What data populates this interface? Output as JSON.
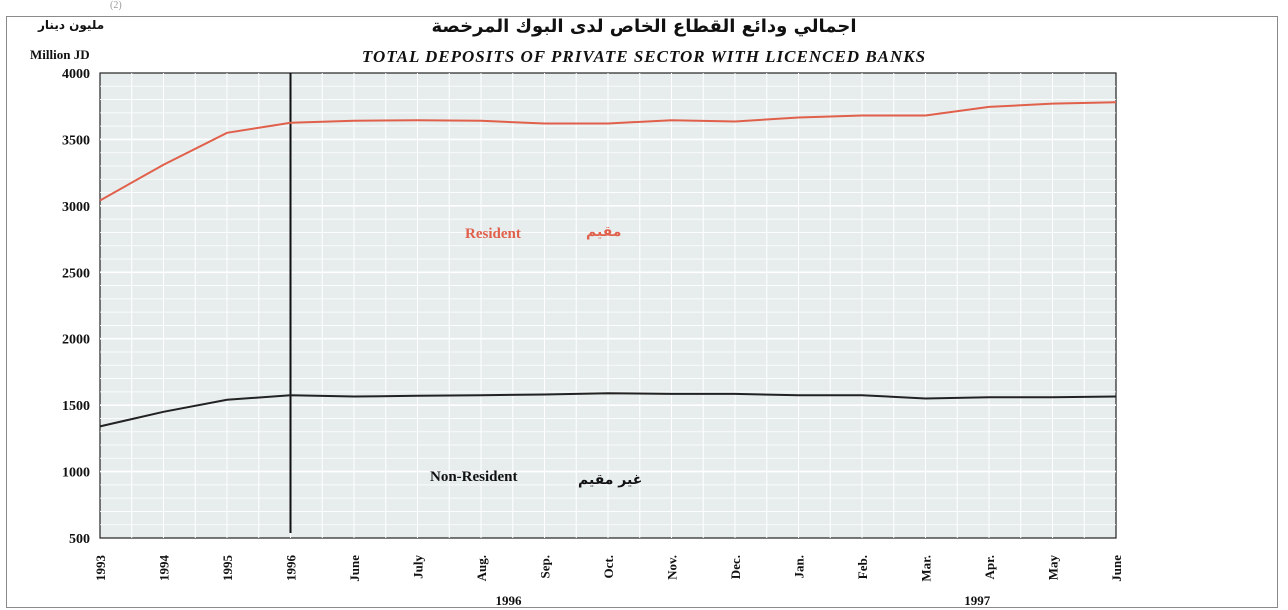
{
  "top_note": "(2)",
  "colors": {
    "resident": "#e0604b",
    "non_resident": "#222222",
    "plot_bg": "#e7eded"
  },
  "chart_data": {
    "type": "line",
    "title": "TOTAL DEPOSITS OF PRIVATE SECTOR WITH LICENCED BANKS",
    "title_ar": "اجمالي ودائع القطاع الخاص لدى البوك المرخصة",
    "ylabel": "Million JD",
    "ylabel_ar": "مليون دينار",
    "ylim": [
      500,
      4000
    ],
    "yticks": [
      500,
      1000,
      1500,
      2000,
      2500,
      3000,
      3500,
      4000
    ],
    "categories": [
      "1993",
      "1994",
      "1995",
      "1996",
      "June",
      "July",
      "Aug.",
      "Sep.",
      "Oct.",
      "Nov.",
      "Dec.",
      "Jan.",
      "Feb.",
      "Mar.",
      "Apr.",
      "May",
      "June"
    ],
    "year_groups": [
      {
        "label": "1996"
      },
      {
        "label": "1997"
      }
    ],
    "grid": true,
    "series": [
      {
        "name": "Resident",
        "name_ar": "مقيم",
        "values": [
          3040,
          3310,
          3550,
          3625,
          3640,
          3645,
          3640,
          3620,
          3620,
          3645,
          3635,
          3665,
          3680,
          3680,
          3745,
          3770,
          3780
        ]
      },
      {
        "name": "Non-Resident",
        "name_ar": "غير مقيم",
        "values": [
          1340,
          1450,
          1540,
          1575,
          1565,
          1570,
          1575,
          1580,
          1590,
          1585,
          1585,
          1575,
          1575,
          1550,
          1560,
          1560,
          1565
        ]
      }
    ]
  }
}
